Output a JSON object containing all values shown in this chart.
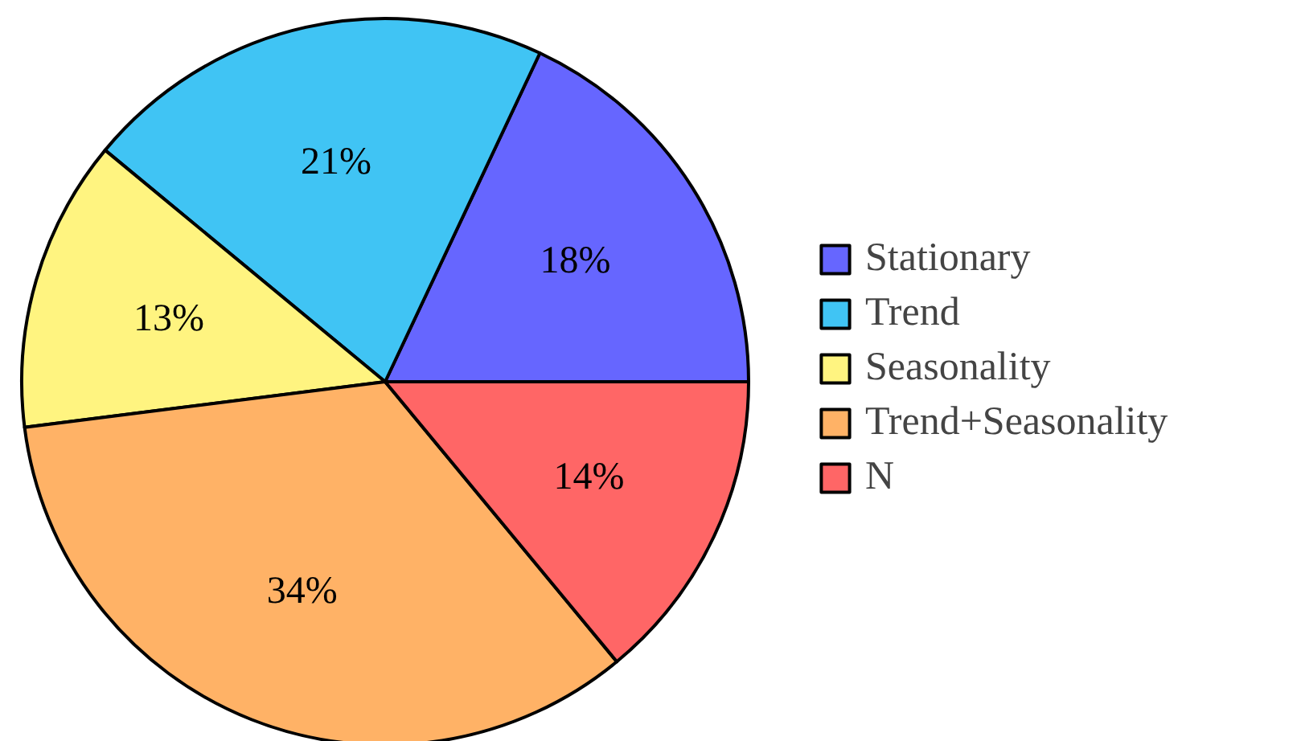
{
  "chart_data": {
    "type": "pie",
    "categories": [
      "Stationary",
      "Trend",
      "Seasonality",
      "Trend+Seasonality",
      "N"
    ],
    "values": [
      18,
      21,
      13,
      34,
      14
    ],
    "colors": [
      "#6666ff",
      "#40c4f4",
      "#fff480",
      "#ffb266",
      "#ff6666"
    ],
    "value_labels": [
      "18%",
      "21%",
      "13%",
      "34%",
      "14%"
    ],
    "legend": "right"
  }
}
